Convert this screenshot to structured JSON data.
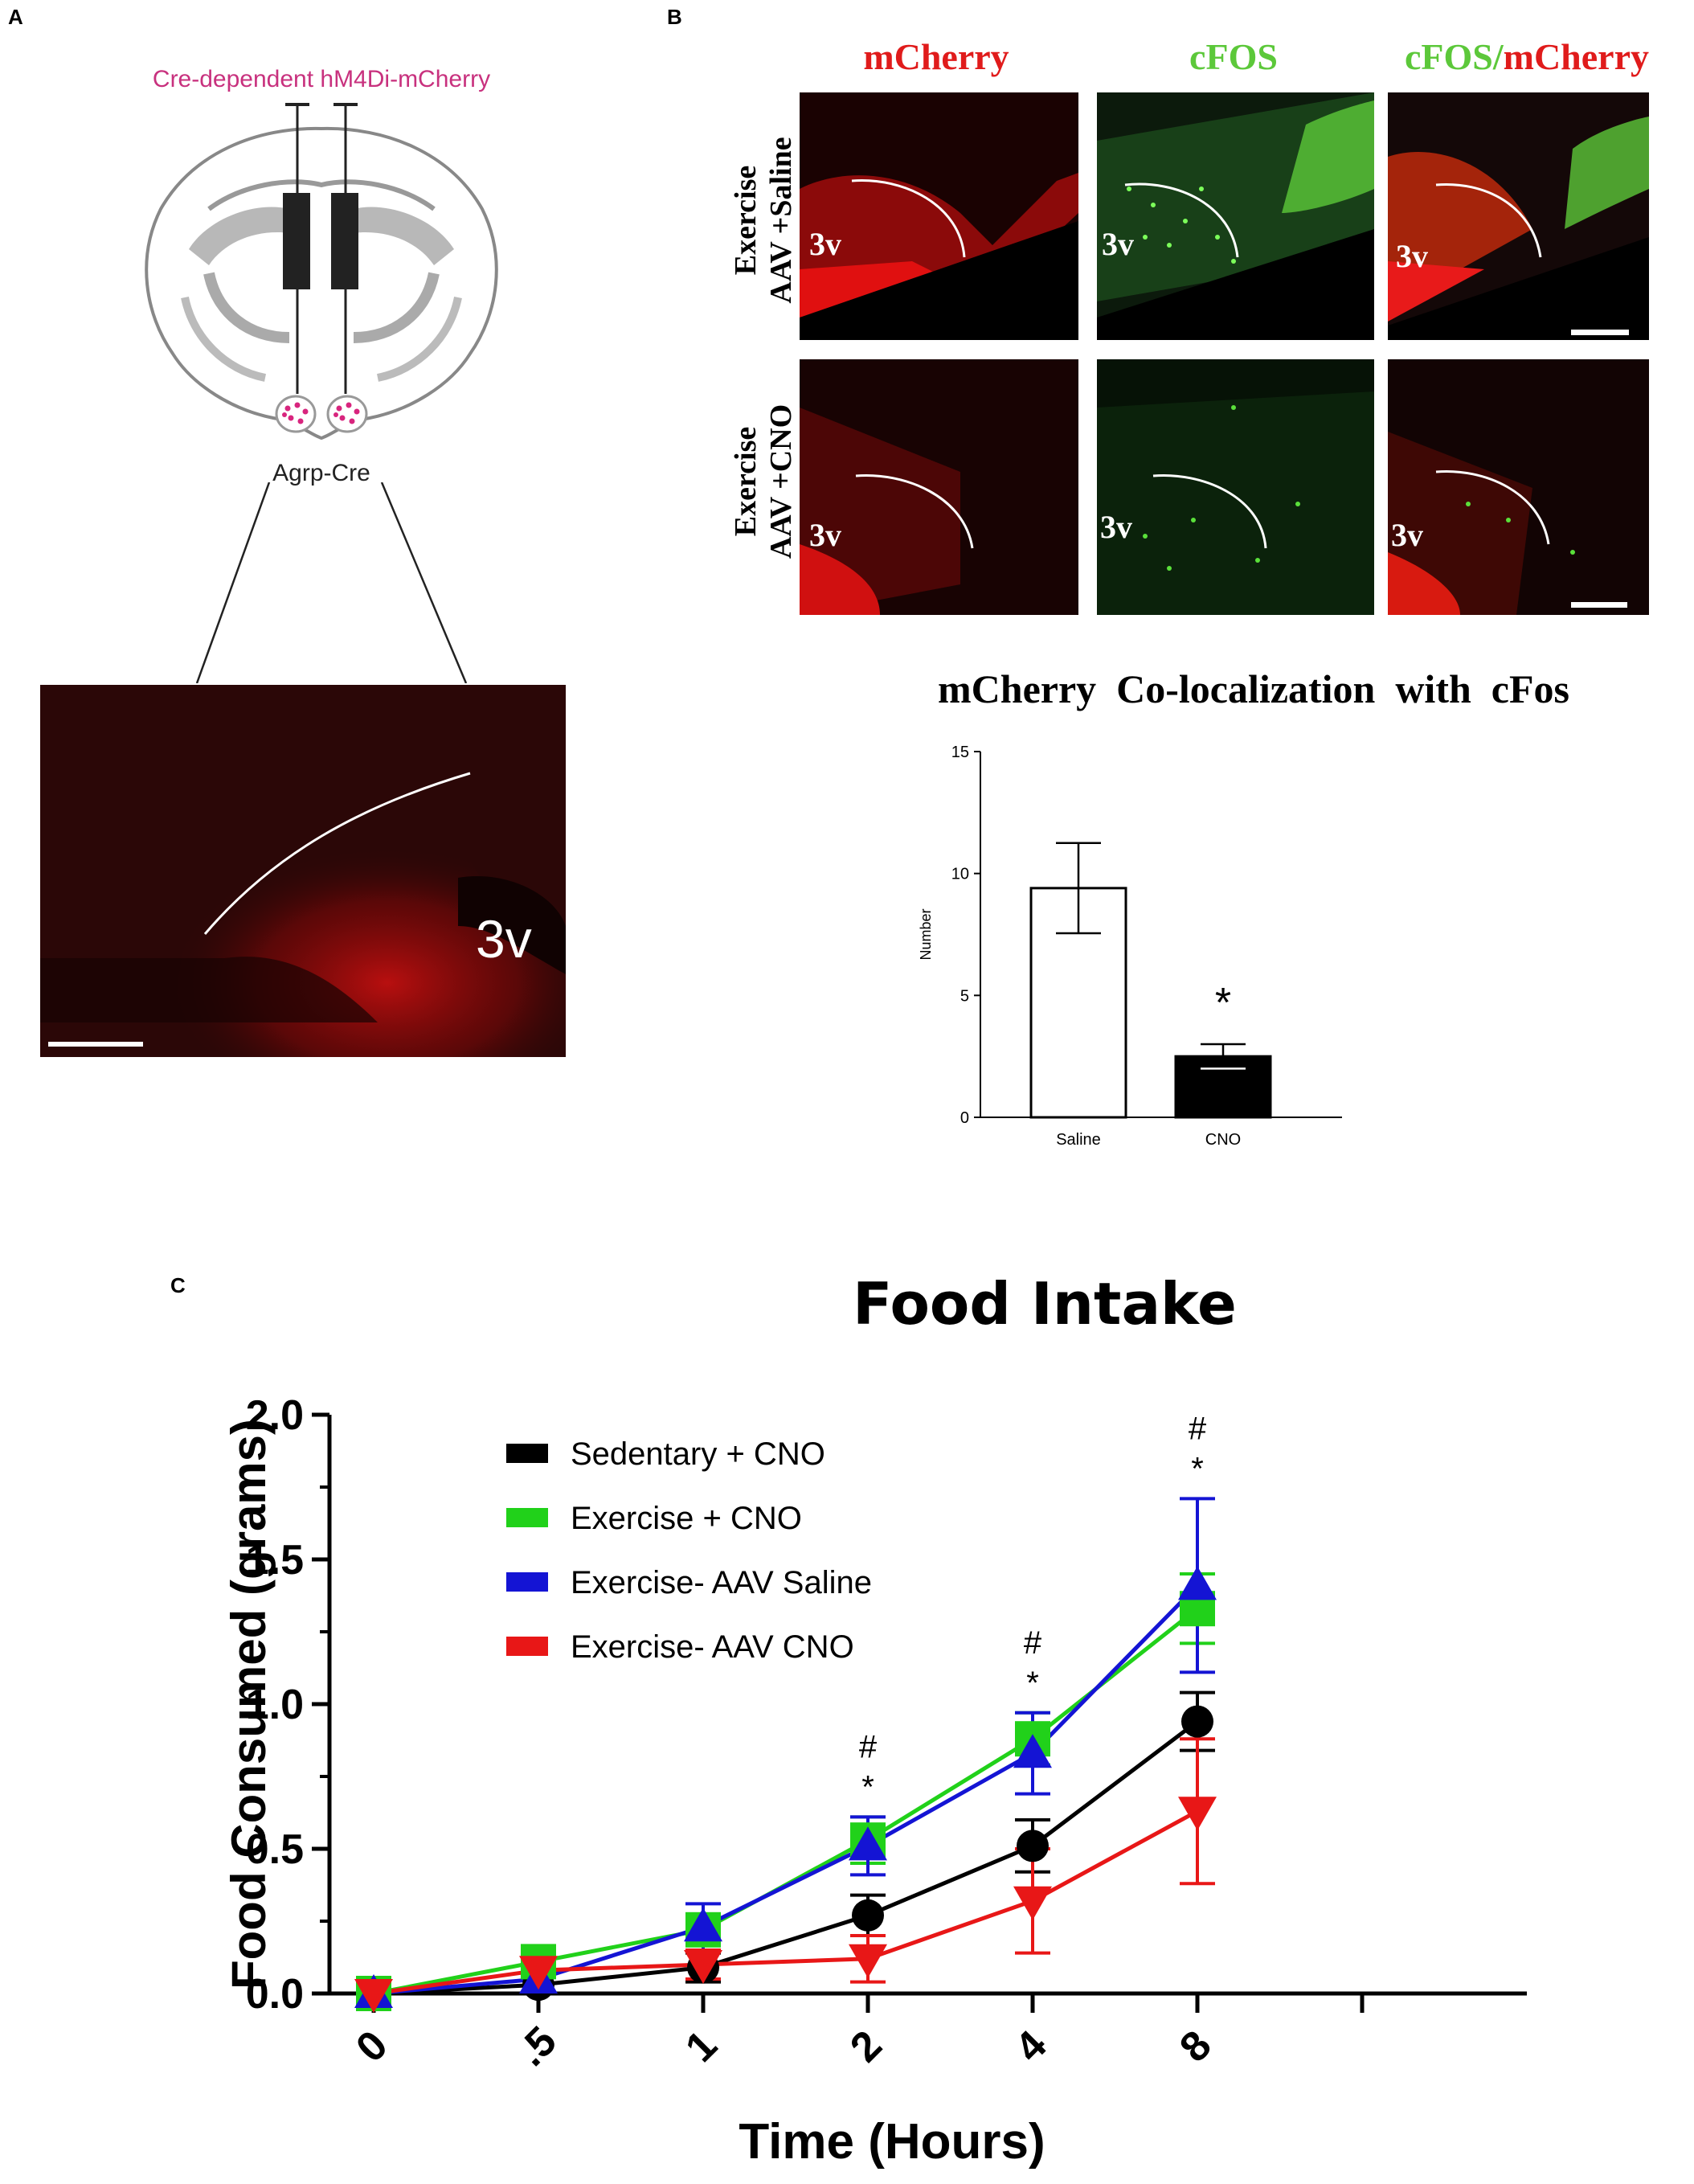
{
  "panel_a": {
    "letter": "A",
    "title": "Cre-dependent hM4Di-mCherry",
    "region_label": "Agrp-Cre",
    "image_label": "3v"
  },
  "panel_b": {
    "letter": "B",
    "columns": [
      {
        "text": "mCherry",
        "color": "#e01b1b"
      },
      {
        "text_green": "cFOS",
        "color": "#5cc83a"
      },
      {
        "text_green": "cFOS/",
        "text_red": "mCherry"
      }
    ],
    "col_mcherry": "mCherry",
    "col_cfos": "cFOS",
    "col_merge_green": "cFOS/",
    "col_merge_red": "mCherry",
    "row1_line1": "Exercise",
    "row1_line2": "AAV +Saline",
    "row2_line1": "Exercise",
    "row2_line2": "AAV +CNO",
    "image_label": "3v"
  },
  "bar_chart": {
    "title": "mCherry  Co-localization  with  cFos",
    "ylabel": "Number",
    "significance": "*"
  },
  "line_chart": {
    "letter": "C",
    "title": "Food Intake",
    "xlabel": "Time (Hours)",
    "ylabel": "Food Consumed (grams)",
    "annotations": [
      {
        "x": "2",
        "lines": [
          "#",
          "*"
        ]
      },
      {
        "x": "4",
        "lines": [
          "#",
          "*"
        ]
      },
      {
        "x": "8",
        "lines": [
          "#",
          "*"
        ]
      }
    ]
  },
  "chart_data": [
    {
      "type": "bar",
      "title": "mCherry  Co-localization  with  cFos",
      "xlabel": "",
      "ylabel": "Number",
      "categories": [
        "Saline",
        "CNO"
      ],
      "values": [
        9.4,
        2.5
      ],
      "errors": [
        1.85,
        0.5
      ],
      "colors": [
        "#ffffff",
        "#000000"
      ],
      "ylim": [
        0,
        15
      ],
      "yticks": [
        0,
        5,
        10,
        15
      ],
      "annotations": [
        {
          "category": "CNO",
          "text": "*"
        }
      ]
    },
    {
      "type": "line",
      "title": "Food Intake",
      "xlabel": "Time (Hours)",
      "ylabel": "Food Consumed (grams)",
      "categories": [
        "0",
        ".5",
        "1",
        "2",
        "4",
        "8"
      ],
      "ylim": [
        0,
        2.0
      ],
      "yticks": [
        "0.0",
        "0.5",
        "1.0",
        "1.5",
        "2.0"
      ],
      "legend_position": "top-left",
      "series": [
        {
          "name": "Sedentary + CNO",
          "color": "#000000",
          "marker": "circle",
          "values": [
            0.0,
            0.03,
            0.09,
            0.27,
            0.51,
            0.94
          ],
          "errors": [
            0.0,
            0.0,
            0.05,
            0.07,
            0.09,
            0.1
          ]
        },
        {
          "name": "Exercise + CNO",
          "color": "#21d11a",
          "marker": "square",
          "values": [
            0.0,
            0.11,
            0.22,
            0.53,
            0.88,
            1.33
          ],
          "errors": [
            0.0,
            0.0,
            0.04,
            0.08,
            0.09,
            0.12
          ]
        },
        {
          "name": "Exercise- AAV Saline",
          "color": "#1414d4",
          "marker": "triangle-up",
          "values": [
            0.0,
            0.05,
            0.23,
            0.51,
            0.83,
            1.41
          ],
          "errors": [
            0.0,
            0.0,
            0.08,
            0.1,
            0.14,
            0.3
          ]
        },
        {
          "name": "Exercise- AAV CNO",
          "color": "#e81717",
          "marker": "triangle-down",
          "values": [
            0.0,
            0.08,
            0.1,
            0.12,
            0.32,
            0.63
          ],
          "errors": [
            0.0,
            0.0,
            0.05,
            0.08,
            0.18,
            0.25
          ]
        }
      ]
    }
  ]
}
